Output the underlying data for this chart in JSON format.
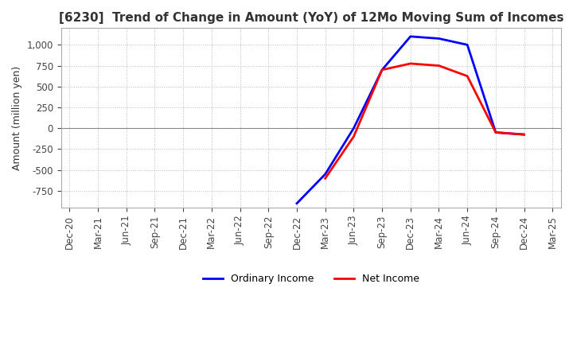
{
  "title": "[6230]  Trend of Change in Amount (YoY) of 12Mo Moving Sum of Incomes",
  "ylabel": "Amount (million yen)",
  "yticks": [
    1000,
    750,
    500,
    250,
    0,
    -250,
    -500,
    -750
  ],
  "ylim": [
    -950,
    1200
  ],
  "background_color": "#ffffff",
  "grid_color": "#bbbbbb",
  "ordinary_income_color": "#0000ff",
  "net_income_color": "#ff0000",
  "x_labels": [
    "Dec-20",
    "Mar-21",
    "Jun-21",
    "Sep-21",
    "Dec-21",
    "Mar-22",
    "Jun-22",
    "Sep-22",
    "Dec-22",
    "Mar-23",
    "Jun-23",
    "Sep-23",
    "Dec-23",
    "Mar-24",
    "Jun-24",
    "Sep-24",
    "Dec-24",
    "Mar-25"
  ],
  "ordinary_income_x": [
    8,
    9,
    10,
    11,
    12,
    13,
    14,
    15,
    16
  ],
  "ordinary_income_y": [
    -900,
    -550,
    0,
    700,
    1100,
    1075,
    1000,
    -50,
    -75
  ],
  "net_income_x": [
    9,
    10,
    11,
    12,
    13,
    14,
    15,
    16
  ],
  "net_income_y": [
    -600,
    -100,
    700,
    775,
    750,
    625,
    -50,
    -75
  ]
}
